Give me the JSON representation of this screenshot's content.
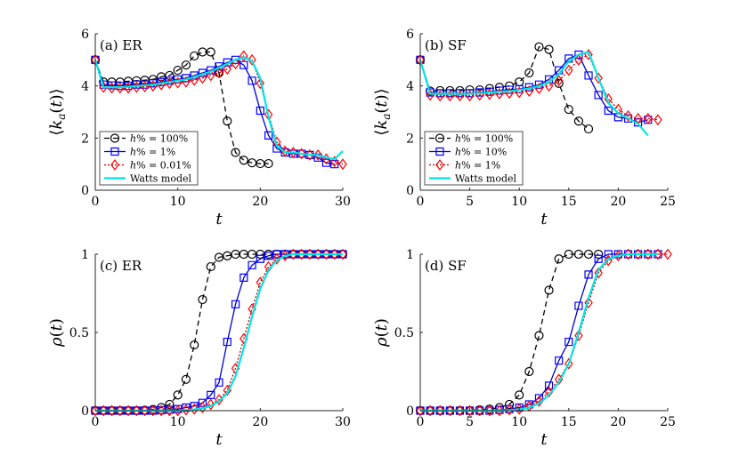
{
  "figure": {
    "styles": {
      "h100": {
        "color": "#000000",
        "marker": "circle",
        "dash": "6,4",
        "markerStroke": "#000000"
      },
      "h1": {
        "color": "#0000cc",
        "marker": "square",
        "dash": "",
        "markerStroke": "#0000ff"
      },
      "h10": {
        "color": "#0000cc",
        "marker": "square",
        "dash": "",
        "markerStroke": "#0000ff"
      },
      "h001": {
        "color": "#cc0000",
        "marker": "diamond",
        "dash": "2,2",
        "markerStroke": "#ff0000"
      },
      "watts": {
        "color": "#00e5e5",
        "marker": "none",
        "dash": "",
        "markerStroke": "#00e5e5"
      }
    }
  },
  "chart_data": [
    {
      "id": "a",
      "type": "line",
      "panel_label": "(a) ER",
      "xlabel": "t",
      "ylabel": "⟨k_a(t)⟩",
      "ylabel_parts": {
        "left": "⟨",
        "k": "k",
        "sub": "a",
        "mid": "(",
        "t": "t",
        "close": ")⟩"
      },
      "xlim": [
        0,
        30
      ],
      "ylim": [
        0,
        6
      ],
      "xticks": [
        0,
        10,
        20,
        30
      ],
      "yticks": [
        0,
        2,
        4,
        6
      ],
      "legend": {
        "position": "bottom-left",
        "entries": [
          {
            "key": "h100",
            "prefix": "h",
            "suffix": "% = 100%"
          },
          {
            "key": "h1",
            "prefix": "h",
            "suffix": "% = 1%"
          },
          {
            "key": "h001",
            "prefix": "h",
            "suffix": "% = 0.01%"
          },
          {
            "key": "watts",
            "prefix": "",
            "suffix": "Watts model"
          }
        ]
      },
      "series": [
        {
          "key": "h100",
          "name": "h% = 100%",
          "x": [
            0,
            1,
            2,
            3,
            4,
            5,
            6,
            7,
            8,
            9,
            10,
            11,
            12,
            13,
            14,
            15,
            16,
            17,
            18,
            19,
            20,
            21
          ],
          "y": [
            5.0,
            4.15,
            4.15,
            4.15,
            4.18,
            4.2,
            4.22,
            4.25,
            4.35,
            4.4,
            4.6,
            4.8,
            5.15,
            5.3,
            5.3,
            4.5,
            2.65,
            1.45,
            1.15,
            1.05,
            1.02,
            1.02
          ]
        },
        {
          "key": "h1",
          "name": "h% = 1%",
          "x": [
            0,
            1,
            2,
            3,
            4,
            5,
            6,
            7,
            8,
            9,
            10,
            11,
            12,
            13,
            14,
            15,
            16,
            17,
            18,
            19,
            20,
            21,
            22,
            23,
            24,
            25,
            26,
            27,
            28,
            29
          ],
          "y": [
            5.0,
            4.05,
            4.02,
            4.0,
            4.0,
            4.05,
            4.05,
            4.1,
            4.15,
            4.2,
            4.25,
            4.3,
            4.4,
            4.5,
            4.6,
            4.75,
            4.9,
            5.0,
            4.8,
            4.2,
            3.05,
            2.1,
            1.6,
            1.45,
            1.4,
            1.4,
            1.35,
            1.25,
            1.05,
            1.0
          ]
        },
        {
          "key": "h001",
          "name": "h% = 0.01%",
          "x": [
            0,
            1,
            2,
            3,
            4,
            5,
            6,
            7,
            8,
            9,
            10,
            11,
            12,
            13,
            14,
            15,
            16,
            17,
            18,
            19,
            20,
            21,
            22,
            23,
            24,
            25,
            26,
            27,
            28,
            29,
            30
          ],
          "y": [
            5.0,
            3.95,
            3.92,
            3.92,
            3.92,
            3.95,
            3.97,
            4.0,
            4.05,
            4.1,
            4.12,
            4.15,
            4.22,
            4.3,
            4.4,
            4.5,
            4.65,
            4.85,
            5.15,
            5.0,
            4.1,
            2.9,
            1.85,
            1.5,
            1.45,
            1.4,
            1.35,
            1.35,
            1.2,
            1.1,
            1.0
          ]
        },
        {
          "key": "watts",
          "name": "Watts model",
          "x": [
            0,
            1,
            2,
            3,
            4,
            5,
            6,
            7,
            8,
            9,
            10,
            11,
            12,
            13,
            14,
            15,
            16,
            17,
            18,
            19,
            20,
            21,
            22,
            23,
            24,
            25,
            26,
            27,
            28,
            29,
            30
          ],
          "y": [
            5.0,
            3.95,
            3.95,
            3.95,
            3.97,
            4.0,
            4.02,
            4.05,
            4.1,
            4.15,
            4.2,
            4.25,
            4.35,
            4.45,
            4.55,
            4.7,
            4.85,
            5.0,
            5.1,
            4.95,
            4.3,
            2.8,
            1.7,
            1.45,
            1.45,
            1.4,
            1.35,
            1.35,
            1.25,
            1.2,
            1.5
          ]
        }
      ]
    },
    {
      "id": "b",
      "type": "line",
      "panel_label": "(b) SF",
      "xlabel": "t",
      "ylabel": "⟨k_a(t)⟩",
      "ylabel_parts": {
        "left": "⟨",
        "k": "k",
        "sub": "a",
        "mid": "(",
        "t": "t",
        "close": ")⟩"
      },
      "xlim": [
        0,
        25
      ],
      "ylim": [
        0,
        6
      ],
      "xticks": [
        0,
        5,
        10,
        15,
        20,
        25
      ],
      "yticks": [
        0,
        2,
        4,
        6
      ],
      "legend": {
        "position": "bottom-left",
        "entries": [
          {
            "key": "h100",
            "prefix": "h",
            "suffix": "% = 100%"
          },
          {
            "key": "h10",
            "prefix": "h",
            "suffix": "% = 10%"
          },
          {
            "key": "h001",
            "prefix": "h",
            "suffix": "% = 1%"
          },
          {
            "key": "watts",
            "prefix": "",
            "suffix": "Watts model"
          }
        ]
      },
      "series": [
        {
          "key": "h100",
          "name": "h% = 100%",
          "x": [
            0,
            1,
            2,
            3,
            4,
            5,
            6,
            7,
            8,
            9,
            10,
            11,
            12,
            13,
            14,
            15,
            16,
            17
          ],
          "y": [
            5.0,
            3.8,
            3.82,
            3.82,
            3.82,
            3.85,
            3.85,
            3.9,
            3.95,
            4.0,
            4.15,
            4.5,
            5.5,
            5.4,
            4.1,
            3.1,
            2.65,
            2.35
          ]
        },
        {
          "key": "h10",
          "name": "h% = 10%",
          "x": [
            0,
            1,
            2,
            3,
            4,
            5,
            6,
            7,
            8,
            9,
            10,
            11,
            12,
            13,
            14,
            15,
            16,
            17,
            18,
            19,
            20,
            21,
            22,
            23
          ],
          "y": [
            5.0,
            3.75,
            3.72,
            3.72,
            3.72,
            3.72,
            3.75,
            3.78,
            3.82,
            3.85,
            3.88,
            3.95,
            4.05,
            4.25,
            4.6,
            5.05,
            5.2,
            4.4,
            3.65,
            3.05,
            2.8,
            2.75,
            2.6,
            2.7
          ]
        },
        {
          "key": "h001",
          "name": "h% = 1%",
          "x": [
            0,
            1,
            2,
            3,
            4,
            5,
            6,
            7,
            8,
            9,
            10,
            11,
            12,
            13,
            14,
            15,
            16,
            17,
            18,
            19,
            20,
            21,
            22,
            23,
            24
          ],
          "y": [
            5.0,
            3.65,
            3.62,
            3.62,
            3.62,
            3.62,
            3.65,
            3.68,
            3.7,
            3.72,
            3.75,
            3.8,
            3.9,
            4.0,
            4.2,
            4.6,
            5.0,
            5.2,
            4.3,
            3.5,
            3.1,
            2.85,
            2.75,
            2.75,
            2.7
          ]
        },
        {
          "key": "watts",
          "name": "Watts model",
          "x": [
            0,
            1,
            2,
            3,
            4,
            5,
            6,
            7,
            8,
            9,
            10,
            11,
            12,
            13,
            14,
            15,
            16,
            17,
            18,
            19,
            20,
            21,
            22,
            23
          ],
          "y": [
            5.0,
            3.7,
            3.7,
            3.7,
            3.7,
            3.7,
            3.72,
            3.75,
            3.78,
            3.8,
            3.85,
            3.9,
            4.0,
            4.15,
            4.45,
            4.95,
            5.2,
            5.3,
            4.3,
            3.35,
            2.95,
            2.75,
            2.55,
            2.1
          ]
        }
      ]
    },
    {
      "id": "c",
      "type": "line",
      "panel_label": "(c) ER",
      "xlabel": "t",
      "ylabel": "ρ(t)",
      "ylabel_parts": {
        "left": "ρ",
        "k": "",
        "sub": "",
        "mid": "(",
        "t": "t",
        "close": ")"
      },
      "xlim": [
        0,
        30
      ],
      "ylim": [
        0,
        1
      ],
      "xticks": [
        0,
        10,
        20,
        30
      ],
      "yticks": [
        0,
        0.5,
        1
      ],
      "legend": null,
      "series": [
        {
          "key": "h100",
          "name": "h% = 100%",
          "x": [
            0,
            1,
            2,
            3,
            4,
            5,
            6,
            7,
            8,
            9,
            10,
            11,
            12,
            13,
            14,
            15,
            16,
            17,
            18,
            19,
            20,
            21,
            22,
            23,
            24,
            25,
            26,
            27,
            28,
            29,
            30
          ],
          "y": [
            0,
            0,
            0,
            0,
            0,
            0,
            0.003,
            0.008,
            0.02,
            0.04,
            0.1,
            0.2,
            0.42,
            0.71,
            0.92,
            0.98,
            0.99,
            1,
            1,
            1,
            1,
            1,
            1,
            1,
            1,
            1,
            1,
            1,
            1,
            1,
            1
          ]
        },
        {
          "key": "h1",
          "name": "h% = 1%",
          "x": [
            0,
            1,
            2,
            3,
            4,
            5,
            6,
            7,
            8,
            9,
            10,
            11,
            12,
            13,
            14,
            15,
            16,
            17,
            18,
            19,
            20,
            21,
            22,
            23,
            24,
            25,
            26,
            27,
            28,
            29,
            30
          ],
          "y": [
            0,
            0,
            0,
            0,
            0,
            0,
            0,
            0,
            0.003,
            0.006,
            0.01,
            0.02,
            0.03,
            0.05,
            0.1,
            0.18,
            0.44,
            0.68,
            0.85,
            0.93,
            0.97,
            0.99,
            1,
            1,
            1,
            1,
            1,
            1,
            1,
            1,
            1
          ]
        },
        {
          "key": "h001",
          "name": "h% = 0.01%",
          "x": [
            0,
            1,
            2,
            3,
            4,
            5,
            6,
            7,
            8,
            9,
            10,
            11,
            12,
            13,
            14,
            15,
            16,
            17,
            18,
            19,
            20,
            21,
            22,
            23,
            24,
            25,
            26,
            27,
            28,
            29,
            30
          ],
          "y": [
            0,
            0,
            0,
            0,
            0,
            0,
            0,
            0,
            0,
            0,
            0,
            0.005,
            0.01,
            0.02,
            0.04,
            0.07,
            0.13,
            0.27,
            0.46,
            0.65,
            0.82,
            0.92,
            0.97,
            0.99,
            1,
            1,
            1,
            1,
            1,
            1,
            1
          ]
        },
        {
          "key": "watts",
          "name": "Watts model",
          "x": [
            0,
            1,
            2,
            3,
            4,
            5,
            6,
            7,
            8,
            9,
            10,
            11,
            12,
            13,
            14,
            15,
            16,
            17,
            18,
            19,
            20,
            21,
            22,
            23,
            24,
            25,
            26,
            27,
            28,
            29,
            30
          ],
          "y": [
            0,
            0,
            0,
            0,
            0,
            0,
            0,
            0,
            0,
            0,
            0,
            0.004,
            0.008,
            0.015,
            0.03,
            0.06,
            0.11,
            0.22,
            0.4,
            0.6,
            0.78,
            0.9,
            0.96,
            0.99,
            1,
            1,
            1,
            1,
            1,
            1,
            1
          ]
        }
      ]
    },
    {
      "id": "d",
      "type": "line",
      "panel_label": "(d) SF",
      "xlabel": "t",
      "ylabel": "ρ(t)",
      "ylabel_parts": {
        "left": "ρ",
        "k": "",
        "sub": "",
        "mid": "(",
        "t": "t",
        "close": ")"
      },
      "xlim": [
        0,
        25
      ],
      "ylim": [
        0,
        1
      ],
      "xticks": [
        0,
        5,
        10,
        15,
        20,
        25
      ],
      "yticks": [
        0,
        0.5,
        1
      ],
      "legend": null,
      "series": [
        {
          "key": "h100",
          "name": "h% = 100%",
          "x": [
            0,
            1,
            2,
            3,
            4,
            5,
            6,
            7,
            8,
            9,
            10,
            11,
            12,
            13,
            14,
            15,
            16,
            17,
            18
          ],
          "y": [
            0,
            0,
            0,
            0,
            0,
            0,
            0.005,
            0.01,
            0.02,
            0.04,
            0.1,
            0.25,
            0.48,
            0.77,
            0.97,
            1,
            1,
            1,
            1
          ]
        },
        {
          "key": "h10",
          "name": "h% = 10%",
          "x": [
            0,
            1,
            2,
            3,
            4,
            5,
            6,
            7,
            8,
            9,
            10,
            11,
            12,
            13,
            14,
            15,
            16,
            17,
            18,
            19,
            20,
            21,
            22,
            23,
            24
          ],
          "y": [
            0,
            0,
            0,
            0,
            0,
            0,
            0,
            0,
            0.005,
            0.01,
            0.02,
            0.04,
            0.08,
            0.16,
            0.32,
            0.44,
            0.67,
            0.87,
            0.97,
            1,
            1,
            1,
            1,
            1,
            1
          ]
        },
        {
          "key": "h001",
          "name": "h% = 1%",
          "x": [
            0,
            1,
            2,
            3,
            4,
            5,
            6,
            7,
            8,
            9,
            10,
            11,
            12,
            13,
            14,
            15,
            16,
            17,
            18,
            19,
            20,
            21,
            22,
            23,
            24,
            25
          ],
          "y": [
            0,
            0,
            0,
            0,
            0,
            0,
            0,
            0,
            0,
            0.005,
            0.01,
            0.03,
            0.06,
            0.12,
            0.2,
            0.3,
            0.48,
            0.69,
            0.88,
            0.96,
            0.99,
            1,
            1,
            1,
            1,
            1
          ]
        },
        {
          "key": "watts",
          "name": "Watts model",
          "x": [
            0,
            1,
            2,
            3,
            4,
            5,
            6,
            7,
            8,
            9,
            10,
            11,
            12,
            13,
            14,
            15,
            16,
            17,
            18,
            19,
            20,
            21,
            22,
            23,
            24
          ],
          "y": [
            0,
            0,
            0,
            0,
            0,
            0,
            0,
            0,
            0,
            0.004,
            0.008,
            0.02,
            0.045,
            0.1,
            0.18,
            0.3,
            0.5,
            0.72,
            0.9,
            0.97,
            0.99,
            1,
            1,
            1,
            1
          ]
        }
      ]
    }
  ]
}
